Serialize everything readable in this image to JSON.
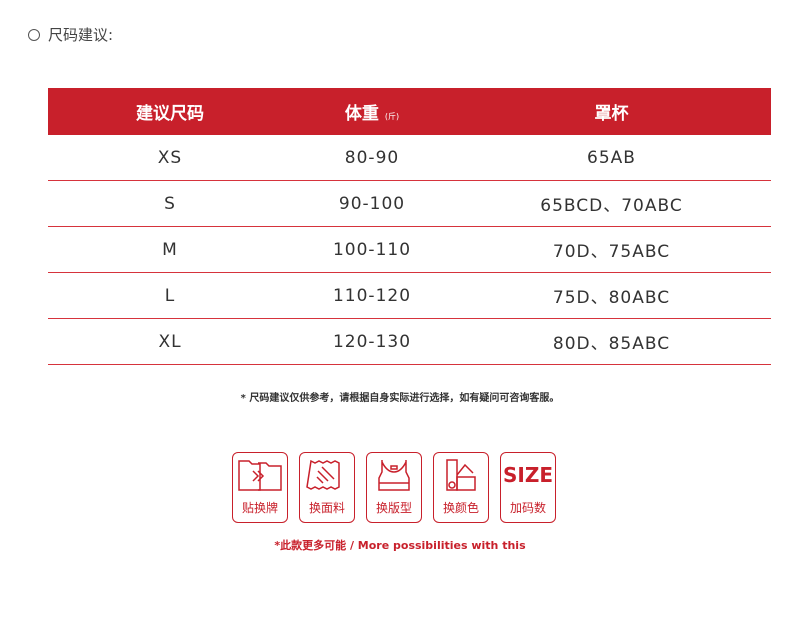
{
  "section_title": "尺码建议:",
  "table": {
    "headers": [
      "建议尺码",
      "体重",
      "罩杯"
    ],
    "weight_unit": "(斤)",
    "rows": [
      [
        "XS",
        "80-90",
        "65AB"
      ],
      [
        "S",
        "90-100",
        "65BCD、70ABC"
      ],
      [
        "M",
        "100-110",
        "70D、75ABC"
      ],
      [
        "L",
        "110-120",
        "75D、80ABC"
      ],
      [
        "XL",
        "120-130",
        "80D、85ABC"
      ]
    ]
  },
  "note": "* 尺码建议仅供参考，请根据自身实际进行选择，如有疑问可咨询客服。",
  "services": [
    {
      "icon": "label-swap-icon",
      "label": "贴换牌"
    },
    {
      "icon": "fabric-icon",
      "label": "换面料"
    },
    {
      "icon": "garment-icon",
      "label": "换版型"
    },
    {
      "icon": "color-swatch-icon",
      "label": "换颜色"
    },
    {
      "icon": "size-icon",
      "label": "加码数",
      "text": "SIZE"
    }
  ],
  "more": "*此款更多可能 / More possibilities with this",
  "accent": "#c8202b"
}
